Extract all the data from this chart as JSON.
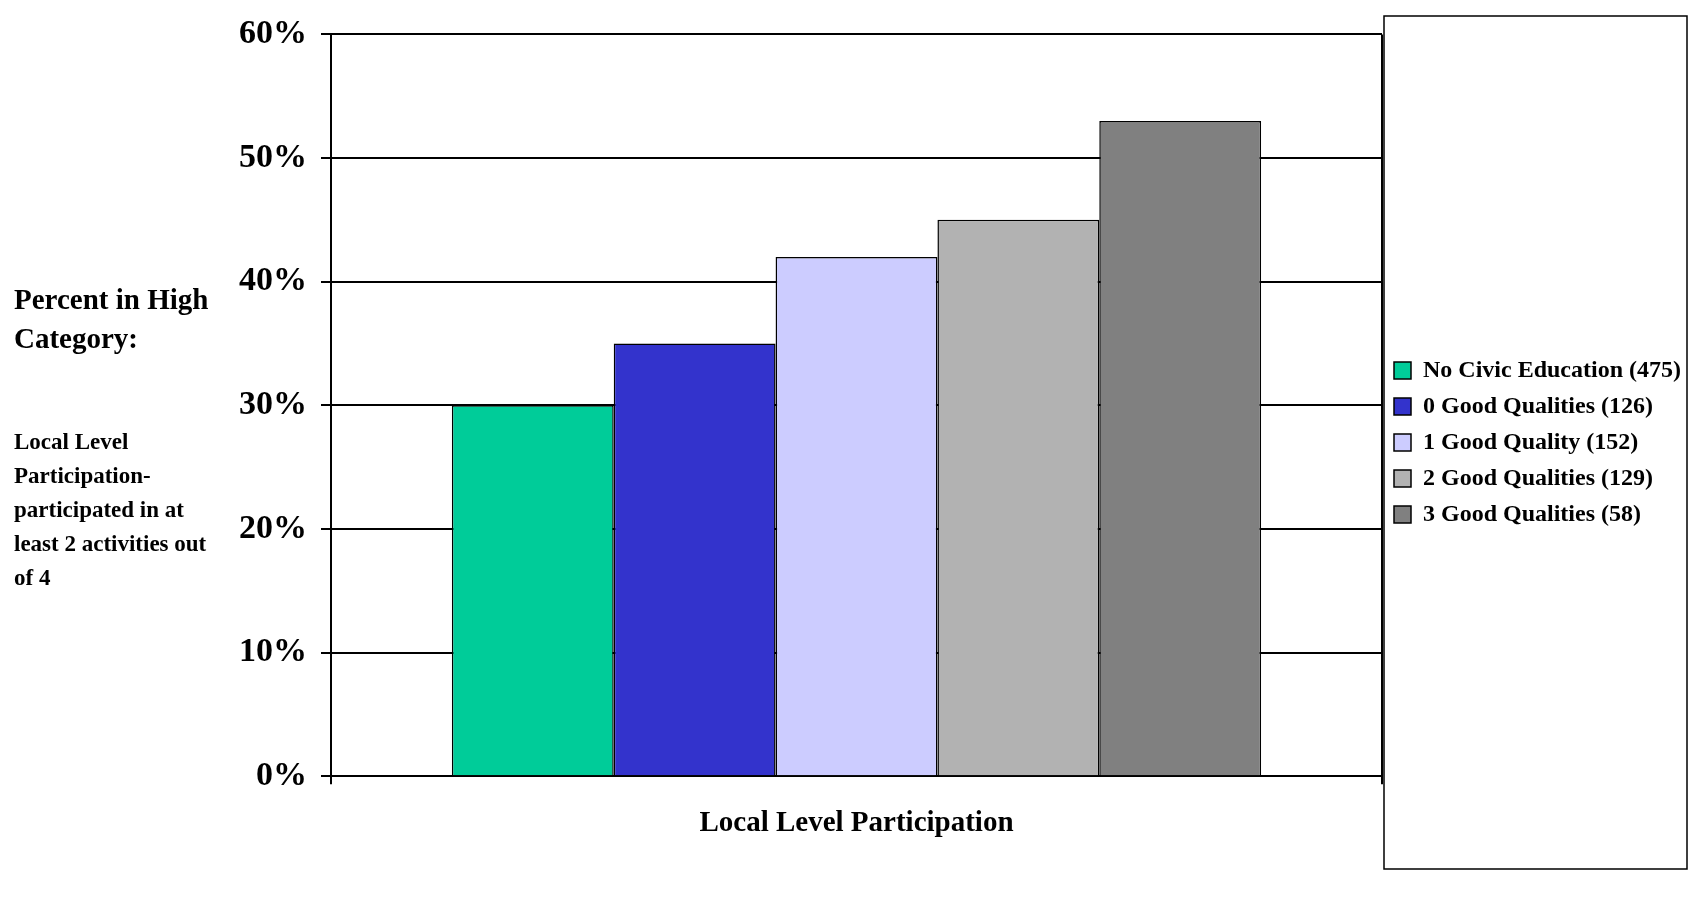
{
  "chart_data": {
    "type": "bar",
    "categories": [
      "Local Level Participation"
    ],
    "series": [
      {
        "name": "No Civic Education (475)",
        "color": "#00cc99",
        "values": [
          30
        ]
      },
      {
        "name": "0 Good Qualities (126)",
        "color": "#3333cc",
        "values": [
          35
        ]
      },
      {
        "name": "1 Good Quality (152)",
        "color": "#ccccff",
        "values": [
          42
        ]
      },
      {
        "name": "2 Good Qualities (129)",
        "color": "#b2b2b2",
        "values": [
          45
        ]
      },
      {
        "name": "3 Good Qualities (58)",
        "color": "#808080",
        "values": [
          53
        ]
      }
    ],
    "ylabel": "Percent in High Category:",
    "annotations": [
      "Local Level Participation-participated in at least 2 activities out of 4"
    ],
    "ylim": [
      0,
      60
    ],
    "yticks": [
      {
        "value": 0,
        "label": "0%"
      },
      {
        "value": 10,
        "label": "10%"
      },
      {
        "value": 20,
        "label": "20%"
      },
      {
        "value": 30,
        "label": "30%"
      },
      {
        "value": 40,
        "label": "40%"
      },
      {
        "value": 50,
        "label": "50%"
      },
      {
        "value": 60,
        "label": "60%"
      }
    ],
    "grid": "y",
    "legend": "right"
  }
}
